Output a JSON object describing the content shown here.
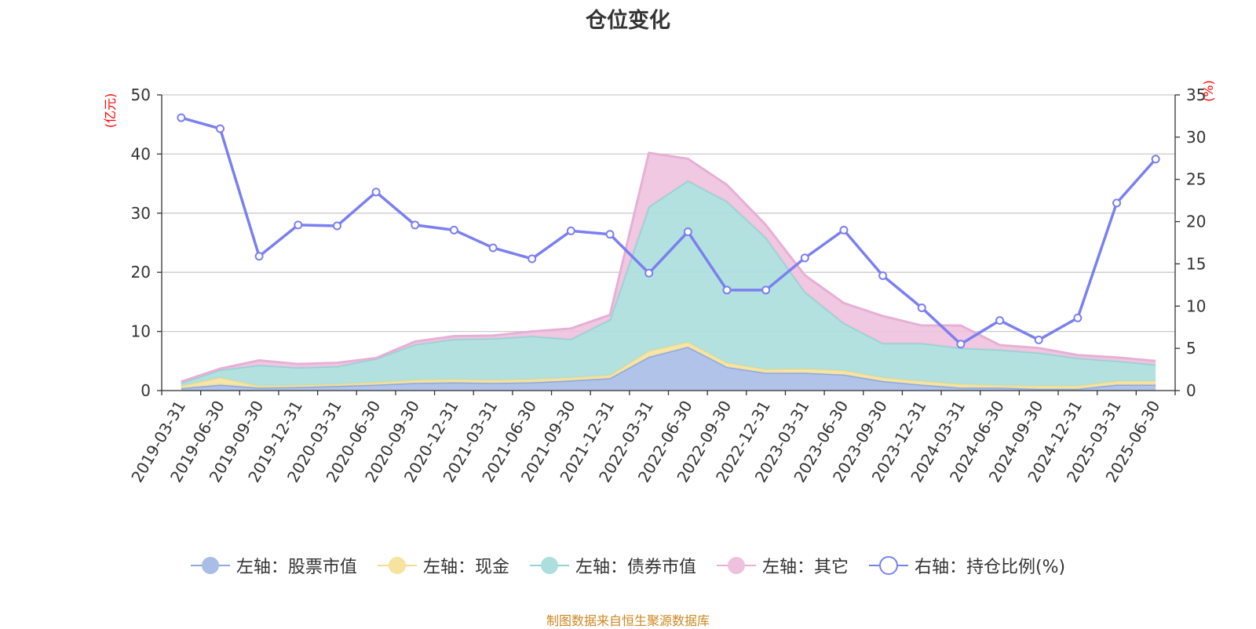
{
  "title": "仓位变化",
  "source_note": "制图数据来自恒生聚源数据库",
  "colors": {
    "stock": "#a9bde6",
    "stock_line": "#8fa9dc",
    "cash": "#f6e3a0",
    "cash_line": "#f3dc8e",
    "bond": "#abdedd",
    "bond_line": "#92d3d4",
    "other": "#eec2de",
    "other_line": "#e6b0d6",
    "ratio": "#7b7ff0",
    "axis_unit": "#ff0000",
    "source": "#cc8822"
  },
  "chart_data": {
    "type": "area",
    "title": "仓位变化",
    "left_axis": {
      "unit": "(亿元)",
      "ylim": [
        0,
        50
      ],
      "ticks": [
        "0",
        "10",
        "20",
        "30",
        "40",
        "50"
      ]
    },
    "right_axis": {
      "unit": "(%)",
      "ylim": [
        0,
        35
      ],
      "ticks": [
        "0",
        "5",
        "10",
        "15",
        "20",
        "25",
        "30",
        "35"
      ]
    },
    "grid": true,
    "legend_position": "bottom",
    "categories": [
      "2019-03-31",
      "2019-06-30",
      "2019-09-30",
      "2019-12-31",
      "2020-03-31",
      "2020-06-30",
      "2020-09-30",
      "2020-12-31",
      "2021-03-31",
      "2021-06-30",
      "2021-09-30",
      "2021-12-31",
      "2022-03-31",
      "2022-06-30",
      "2022-09-30",
      "2022-12-31",
      "2023-03-31",
      "2023-06-30",
      "2023-09-30",
      "2023-12-31",
      "2024-03-31",
      "2024-06-30",
      "2024-09-30",
      "2024-12-31",
      "2025-03-31",
      "2025-06-30"
    ],
    "series": [
      {
        "name": "左轴：股票市值",
        "axis": "left",
        "stacked": true,
        "values": [
          0.4,
          1.0,
          0.5,
          0.6,
          0.8,
          1.0,
          1.3,
          1.4,
          1.3,
          1.4,
          1.7,
          2.1,
          5.7,
          7.4,
          4.0,
          3.0,
          3.0,
          2.7,
          1.6,
          1.0,
          0.5,
          0.5,
          0.3,
          0.3,
          1.0,
          1.0
        ]
      },
      {
        "name": "左轴：现金",
        "axis": "left",
        "stacked": true,
        "values": [
          0.4,
          1.2,
          0.3,
          0.3,
          0.3,
          0.4,
          0.5,
          0.5,
          0.5,
          0.5,
          0.5,
          0.5,
          1.0,
          0.8,
          0.7,
          0.6,
          0.7,
          0.7,
          0.6,
          0.6,
          0.6,
          0.4,
          0.5,
          0.5,
          0.6,
          0.6
        ]
      },
      {
        "name": "左轴：债券市值",
        "axis": "left",
        "stacked": true,
        "values": [
          0.5,
          1.3,
          3.5,
          3.0,
          3.0,
          4.0,
          6.0,
          6.8,
          7.0,
          7.3,
          6.5,
          9.4,
          24.4,
          27.3,
          27.3,
          22.3,
          13.0,
          8.0,
          5.8,
          6.4,
          6.1,
          6.0,
          5.6,
          4.7,
          3.4,
          2.8
        ]
      },
      {
        "name": "左轴：其它",
        "axis": "left",
        "stacked": true,
        "values": [
          0.2,
          0.2,
          0.8,
          0.6,
          0.6,
          0.1,
          0.5,
          0.5,
          0.5,
          0.8,
          1.8,
          0.8,
          9.1,
          3.7,
          2.8,
          2.1,
          2.8,
          3.4,
          4.6,
          3.0,
          3.8,
          0.8,
          0.8,
          0.5,
          0.6,
          0.6
        ]
      },
      {
        "name": "右轴：持仓比例(%)",
        "axis": "right",
        "type": "line",
        "values": [
          32.3,
          31.0,
          15.9,
          19.6,
          19.5,
          23.5,
          19.6,
          19.0,
          16.9,
          15.6,
          18.9,
          18.5,
          13.9,
          18.8,
          11.9,
          11.9,
          15.7,
          19.0,
          13.6,
          9.8,
          5.5,
          8.3,
          6.0,
          8.6,
          22.2,
          27.4
        ]
      }
    ]
  }
}
